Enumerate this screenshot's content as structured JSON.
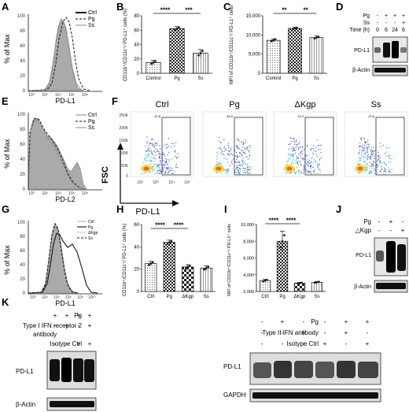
{
  "panel_letters": {
    "A": "A",
    "B": "B",
    "C": "C",
    "D": "D",
    "E": "E",
    "F": "F",
    "G": "G",
    "H": "H",
    "I": "I",
    "J": "J",
    "K": "K"
  },
  "labels": {
    "pct_max": "% of Max",
    "pd_l1": "PD-L1",
    "pd_l2": "PD-L2",
    "fsc": "FSC",
    "beta_actin": "β-Actin",
    "gapdh": "GAPDH",
    "cd_pct": "CD11b⁺/CD11c⁺/ PD-L1⁺ cells (%)",
    "cd_mfi": "MFI of CD11b⁺/CD11c⁺/ PD-L1⁺ cells"
  },
  "A": {
    "legend": [
      "Ctrl",
      "Pg",
      "Ss"
    ]
  },
  "E": {
    "legend": [
      "Ctrl",
      "Pg",
      "Ss"
    ]
  },
  "G": {
    "legend": [
      "Ctrl",
      "Pg",
      "ΔKgp",
      "Ss"
    ]
  },
  "D": {
    "rows": [
      {
        "label": "Pg",
        "marks": [
          "-",
          "+",
          "+",
          "+"
        ]
      },
      {
        "label": "Ss",
        "marks": [
          "-",
          "-",
          "-",
          "+"
        ]
      },
      {
        "label": "Time (h)",
        "marks": [
          "0",
          "6",
          "24",
          "6"
        ]
      }
    ]
  },
  "F": {
    "panels": [
      {
        "title": "Ctrl",
        "gate": "22.8"
      },
      {
        "title": "Pg",
        "gate": "46.6"
      },
      {
        "title": "ΔKgp",
        "gate": "24.0"
      },
      {
        "title": "Ss",
        "gate": "22.6"
      }
    ],
    "y_ticks": [
      "250K",
      "200K",
      "150K",
      "100K",
      "50K",
      "0"
    ],
    "x_ticks": [
      "10²",
      "10³",
      "10⁴",
      "10⁵"
    ]
  },
  "J": {
    "rows": [
      {
        "label": "Pg",
        "marks": [
          "-",
          "+",
          "-"
        ]
      },
      {
        "label": "△Kgp",
        "marks": [
          "-",
          "-",
          "+"
        ]
      }
    ]
  },
  "K": {
    "left_rows": [
      {
        "label": "Pg",
        "marks": [
          "+",
          "+",
          "+",
          "+"
        ]
      },
      {
        "label": "Type I IFN receptor 2 antibody",
        "marks": [
          "-",
          "+",
          "-",
          "+"
        ]
      },
      {
        "label": "Isotype Ctrl",
        "marks": [
          "-",
          "-",
          "+",
          "+"
        ]
      }
    ],
    "right_rows": [
      {
        "label": "Pg",
        "marks": [
          "-",
          "+",
          "-",
          "-",
          "+",
          "+"
        ]
      },
      {
        "label": "Type II IFN antibody",
        "marks": [
          "-",
          "-",
          "+",
          "-",
          "+",
          "-"
        ]
      },
      {
        "label": "Isotype Ctrl",
        "marks": [
          "-",
          "-",
          "-",
          "+",
          "-",
          "+"
        ]
      }
    ]
  },
  "chart_data": [
    {
      "id": "B",
      "type": "bar",
      "categories": [
        "Control",
        "Pg",
        "Ss"
      ],
      "values": [
        15,
        62,
        28
      ],
      "errors": [
        3,
        3,
        5
      ],
      "ylim": [
        0,
        80
      ],
      "yticks": [
        0,
        20,
        40,
        60,
        80
      ],
      "ylabel": "CD11b⁺/CD11c⁺/ PD-L1⁺ cells (%)",
      "significance": [
        {
          "from": 0,
          "to": 1,
          "label": "****"
        },
        {
          "from": 1,
          "to": 2,
          "label": "***"
        }
      ]
    },
    {
      "id": "C",
      "type": "bar",
      "categories": [
        "Control",
        "Pg",
        "Ss"
      ],
      "values": [
        8600,
        11700,
        9300
      ],
      "errors": [
        400,
        300,
        400
      ],
      "ylim": [
        0,
        15000
      ],
      "yticks": [
        0,
        5000,
        10000,
        15000
      ],
      "ytick_labels": [
        "0",
        "5,000",
        "10,000",
        "15,000"
      ],
      "ylabel": "MFI of CD11b⁺/CD11c⁺/ PD-L1⁺ cells",
      "significance": [
        {
          "from": 0,
          "to": 1,
          "label": "**"
        },
        {
          "from": 1,
          "to": 2,
          "label": "**"
        }
      ]
    },
    {
      "id": "H",
      "type": "bar",
      "categories": [
        "Ctrl",
        "Pg",
        "ΔKgp",
        "Ss"
      ],
      "values": [
        25,
        44,
        22,
        21
      ],
      "errors": [
        2,
        2,
        2,
        2
      ],
      "ylim": [
        0,
        60
      ],
      "yticks": [
        0,
        20,
        40,
        60
      ],
      "ylabel": "CD11b⁺/CD11c⁺/ PD-L1⁺ cells (%)",
      "significance": [
        {
          "from": 0,
          "to": 1,
          "label": "****"
        },
        {
          "from": 1,
          "to": 2,
          "label": "****"
        }
      ]
    },
    {
      "id": "I",
      "type": "bar",
      "categories": [
        "Ctrl",
        "Pg",
        "ΔKgp",
        "Ss"
      ],
      "values": [
        3300,
        8000,
        3000,
        3100
      ],
      "errors": [
        150,
        1200,
        100,
        100
      ],
      "ylim": [
        2000,
        10000
      ],
      "yticks": [
        2000,
        4000,
        6000,
        8000,
        10000
      ],
      "ytick_labels": [
        "2,000",
        "4,000",
        "6,000",
        "8,000",
        "10,000"
      ],
      "ylabel": "MFI of CD11b⁺/CD11c⁺/ PD-L1⁺ cells",
      "significance": [
        {
          "from": 0,
          "to": 1,
          "label": "****"
        },
        {
          "from": 1,
          "to": 2,
          "label": "****"
        }
      ]
    }
  ]
}
